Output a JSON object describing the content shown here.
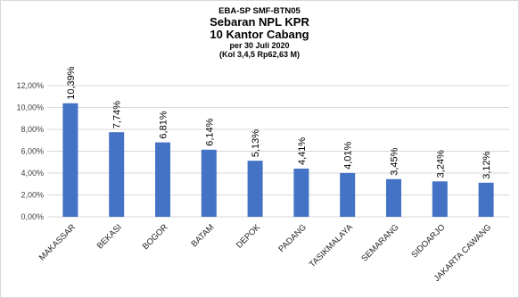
{
  "chart_data": {
    "type": "bar",
    "series_code": "EBA-SP  SMF-BTN05",
    "title": "Sebaran NPL KPR",
    "subtitle": "10 Kantor Cabang",
    "date_line": "per 30 Juli 2020",
    "note_line": "(Kol 3,4,5 Rp62,63  M)",
    "categories": [
      "MAKASSAR",
      "BEKASI",
      "BOGOR",
      "BATAM",
      "DEPOK",
      "PADANG",
      "TASIKMALAYA",
      "SEMARANG",
      "SIDOARJO",
      "JAKARTA CAWANG"
    ],
    "values": [
      10.39,
      7.74,
      6.81,
      6.14,
      5.13,
      4.41,
      4.01,
      3.45,
      3.24,
      3.12
    ],
    "data_labels": [
      "10,39%",
      "7,74%",
      "6,81%",
      "6,14%",
      "5,13%",
      "4,41%",
      "4,01%",
      "3,45%",
      "3,24%",
      "3,12%"
    ],
    "y_ticks": [
      0,
      2,
      4,
      6,
      8,
      10,
      12
    ],
    "y_tick_labels": [
      "0,00%",
      "2,00%",
      "4,00%",
      "6,00%",
      "8,00%",
      "10,00%",
      "12,00%"
    ],
    "ylim": [
      0,
      12
    ],
    "grid": true,
    "bar_color": "#4472c4",
    "grid_color": "#d9d9d9"
  }
}
